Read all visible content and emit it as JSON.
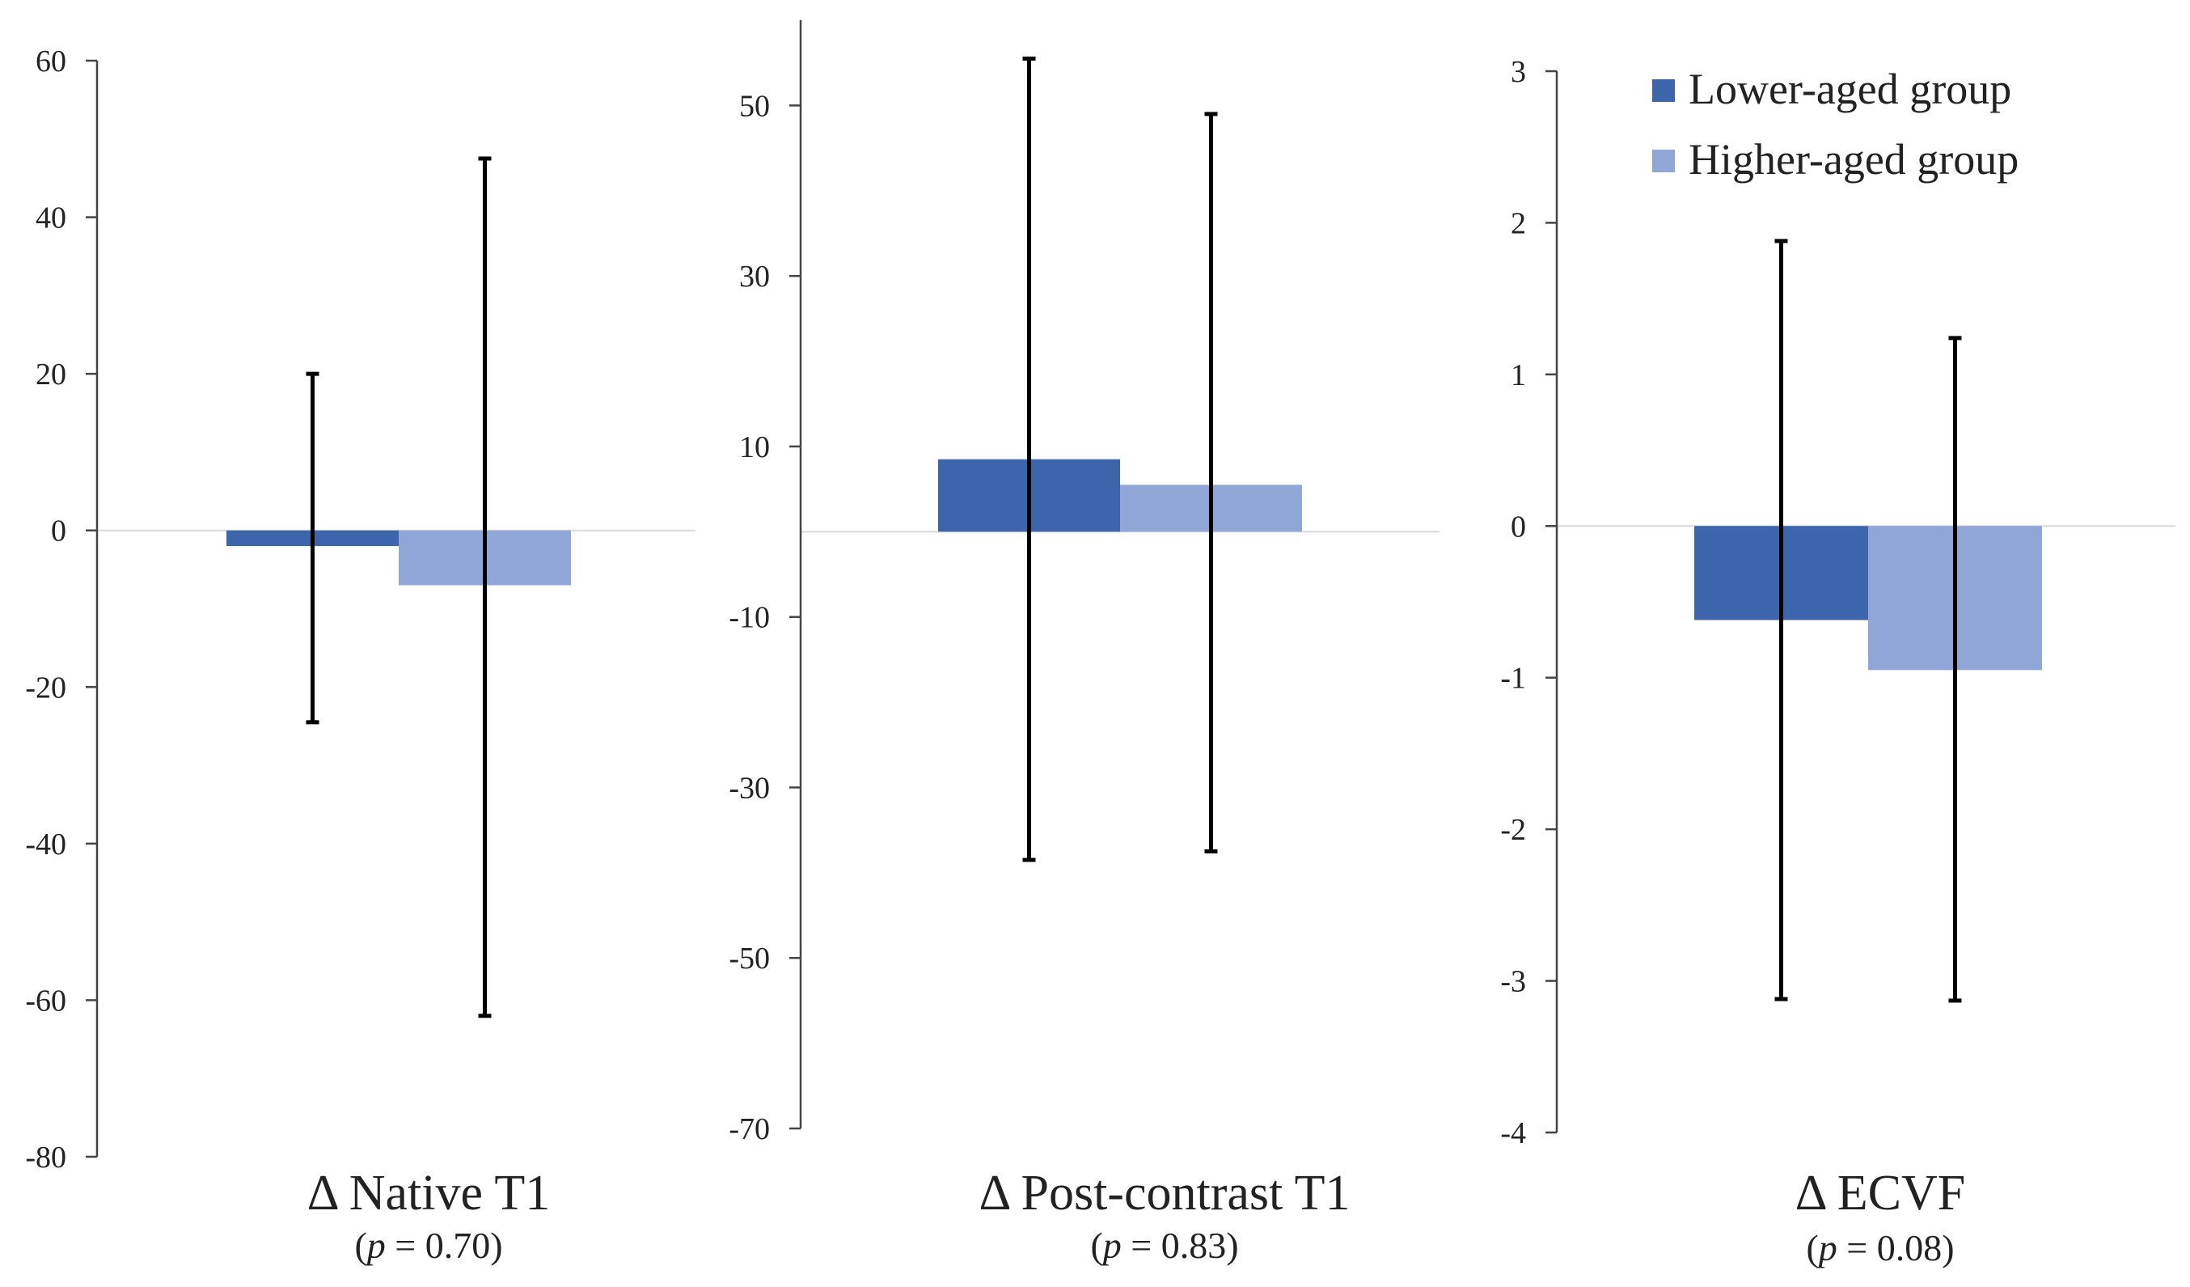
{
  "colors": {
    "lower": "#3d65ac",
    "higher": "#8fa6d7",
    "axis": "#444444",
    "zero": "#d9d9d9",
    "error": "#000000"
  },
  "legend": {
    "items": [
      {
        "label": "Lower-aged group",
        "color_key": "lower"
      },
      {
        "label": "Higher-aged group",
        "color_key": "higher"
      }
    ],
    "placement": "top-right"
  },
  "chart_data": [
    {
      "type": "bar",
      "title": "Δ Native T1",
      "subtitle_prefix": "(",
      "subtitle_p": "p",
      "subtitle_rest": " = 0.70)",
      "ylim": [
        -80,
        60
      ],
      "yticks": [
        60,
        40,
        20,
        0,
        -20,
        -40,
        -60,
        -80
      ],
      "ytick_labels": [
        "60",
        "40",
        "20",
        "0",
        "-20",
        "-40",
        "-60",
        "-80"
      ],
      "series": [
        {
          "values": [
            -2
          ],
          "error_low": [
            -24.5
          ],
          "error_high": [
            20
          ]
        },
        {
          "values": [
            -7
          ],
          "error_low": [
            -62
          ],
          "error_high": [
            47.5
          ]
        }
      ]
    },
    {
      "type": "bar",
      "title": "Δ Post-contrast T1",
      "subtitle_prefix": "(",
      "subtitle_p": "p",
      "subtitle_rest": " = 0.83)",
      "ylim": [
        -70,
        60
      ],
      "yticks": [
        50,
        30,
        10,
        -10,
        -30,
        -50,
        -70
      ],
      "ytick_labels": [
        "50",
        "30",
        "10",
        "-10",
        "-30",
        "-50",
        "-70"
      ],
      "series": [
        {
          "values": [
            8.5
          ],
          "error_low": [
            -38.5
          ],
          "error_high": [
            55.5
          ]
        },
        {
          "values": [
            5.5
          ],
          "error_low": [
            -37.5
          ],
          "error_high": [
            49
          ]
        }
      ]
    },
    {
      "type": "bar",
      "title": "Δ ECVF",
      "subtitle_prefix": "(",
      "subtitle_p": "p",
      "subtitle_rest": " = 0.08)",
      "ylim": [
        -4,
        3
      ],
      "yticks": [
        3,
        2,
        1,
        0,
        -1,
        -2,
        -3,
        -4
      ],
      "ytick_labels": [
        "3",
        "2",
        "1",
        "0",
        "-1",
        "-2",
        "-3",
        "-4"
      ],
      "series": [
        {
          "values": [
            -0.62
          ],
          "error_low": [
            -3.12
          ],
          "error_high": [
            1.88
          ]
        },
        {
          "values": [
            -0.95
          ],
          "error_low": [
            -3.13
          ],
          "error_high": [
            1.24
          ]
        }
      ]
    }
  ]
}
